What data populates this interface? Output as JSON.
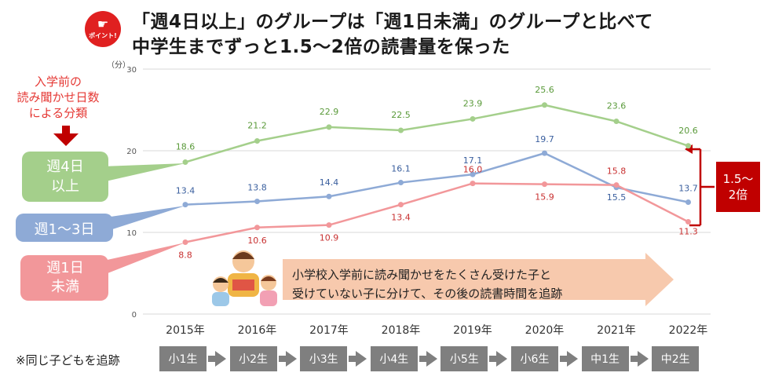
{
  "badge": {
    "text": "ポイント!",
    "icon": "pointing-hand-icon"
  },
  "title": {
    "line1": "「週4日以上」のグループは「週1日未満」のグループと比べて",
    "line2": "中学生までずっと1.5～2倍の読書量を保った"
  },
  "classification_note": "入学前の\n読み聞かせ日数\nによる分類",
  "tracking_note": "※同じ子どもを追跡",
  "grades": [
    "小1生",
    "小2生",
    "小3生",
    "小4生",
    "小5生",
    "小6生",
    "中1生",
    "中2生"
  ],
  "banner_text": "小学校入学前に読み聞かせをたくさん受けた子と\n受けていない子に分けて、その後の読書時間を追跡",
  "difference_label": "1.5～\n2倍",
  "colors": {
    "green": "#a4cf8b",
    "blue": "#8eaad6",
    "red": "#f2979a",
    "badge": "#e02020",
    "diff": "#c00000",
    "arrow": "#f7c9ad"
  },
  "chart_data": {
    "type": "line",
    "ylabel": "（分）",
    "ylim": [
      0,
      30
    ],
    "yticks": [
      0,
      10,
      20,
      30
    ],
    "grid": "horizontal",
    "categories": [
      "2015年",
      "2016年",
      "2017年",
      "2018年",
      "2019年",
      "2020年",
      "2021年",
      "2022年"
    ],
    "series": [
      {
        "name": "週4日以上",
        "color": "#a4cf8b",
        "label_color": "#5a9a3a",
        "values": [
          18.6,
          21.2,
          22.9,
          22.5,
          23.9,
          25.6,
          23.6,
          20.6
        ]
      },
      {
        "name": "週1～3日",
        "color": "#8eaad6",
        "label_color": "#3a5f9e",
        "values": [
          13.4,
          13.8,
          14.4,
          16.1,
          17.1,
          19.7,
          15.5,
          13.7
        ]
      },
      {
        "name": "週1日未満",
        "color": "#f2979a",
        "label_color": "#c83030",
        "values": [
          8.8,
          10.6,
          10.9,
          13.4,
          16.0,
          15.9,
          15.8,
          11.3
        ]
      }
    ]
  }
}
